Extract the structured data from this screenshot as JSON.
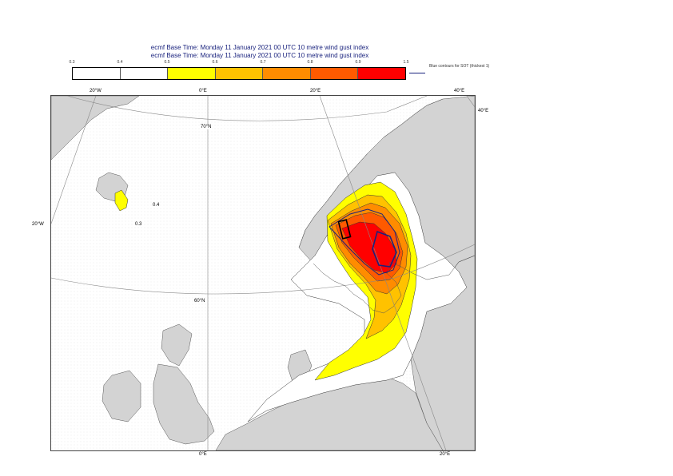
{
  "header": {
    "line1": "ecmf  Base Time: Monday 11 January 2021 00 UTC 10 metre wind gust index",
    "line2": "ecmf  Base Time: Monday 11 January 2021 00 UTC 10 metre wind gust index"
  },
  "legend": {
    "ticks": [
      "0.3",
      "0.4",
      "0.5",
      "0.6",
      "0.7",
      "0.8",
      "0.9",
      "1.5"
    ],
    "colors": [
      "#ffffff",
      "#ffffff",
      "#ffff00",
      "#ffc200",
      "#ff8c00",
      "#ff5a00",
      "#ff0000"
    ],
    "note": "Blue contours for SOT (thickest 1)",
    "sot_line_color": "#1a237e"
  },
  "map": {
    "land_color": "#d3d3d3",
    "coastline_color": "#555555",
    "grid_color": "#888888",
    "frame_labels": {
      "top_w20": "20°W",
      "top_0": "0°E",
      "top_e20": "20°E",
      "top_e40": "40°E",
      "right_e40": "40°E",
      "left_w20": "20°W",
      "bottom_0": "0°E",
      "bottom_e20": "20°E"
    },
    "lat_labels": {
      "n70": "70°N",
      "n60": "60°N"
    },
    "contour_labels": {
      "c04": "0.4",
      "c03": "0.3"
    }
  }
}
